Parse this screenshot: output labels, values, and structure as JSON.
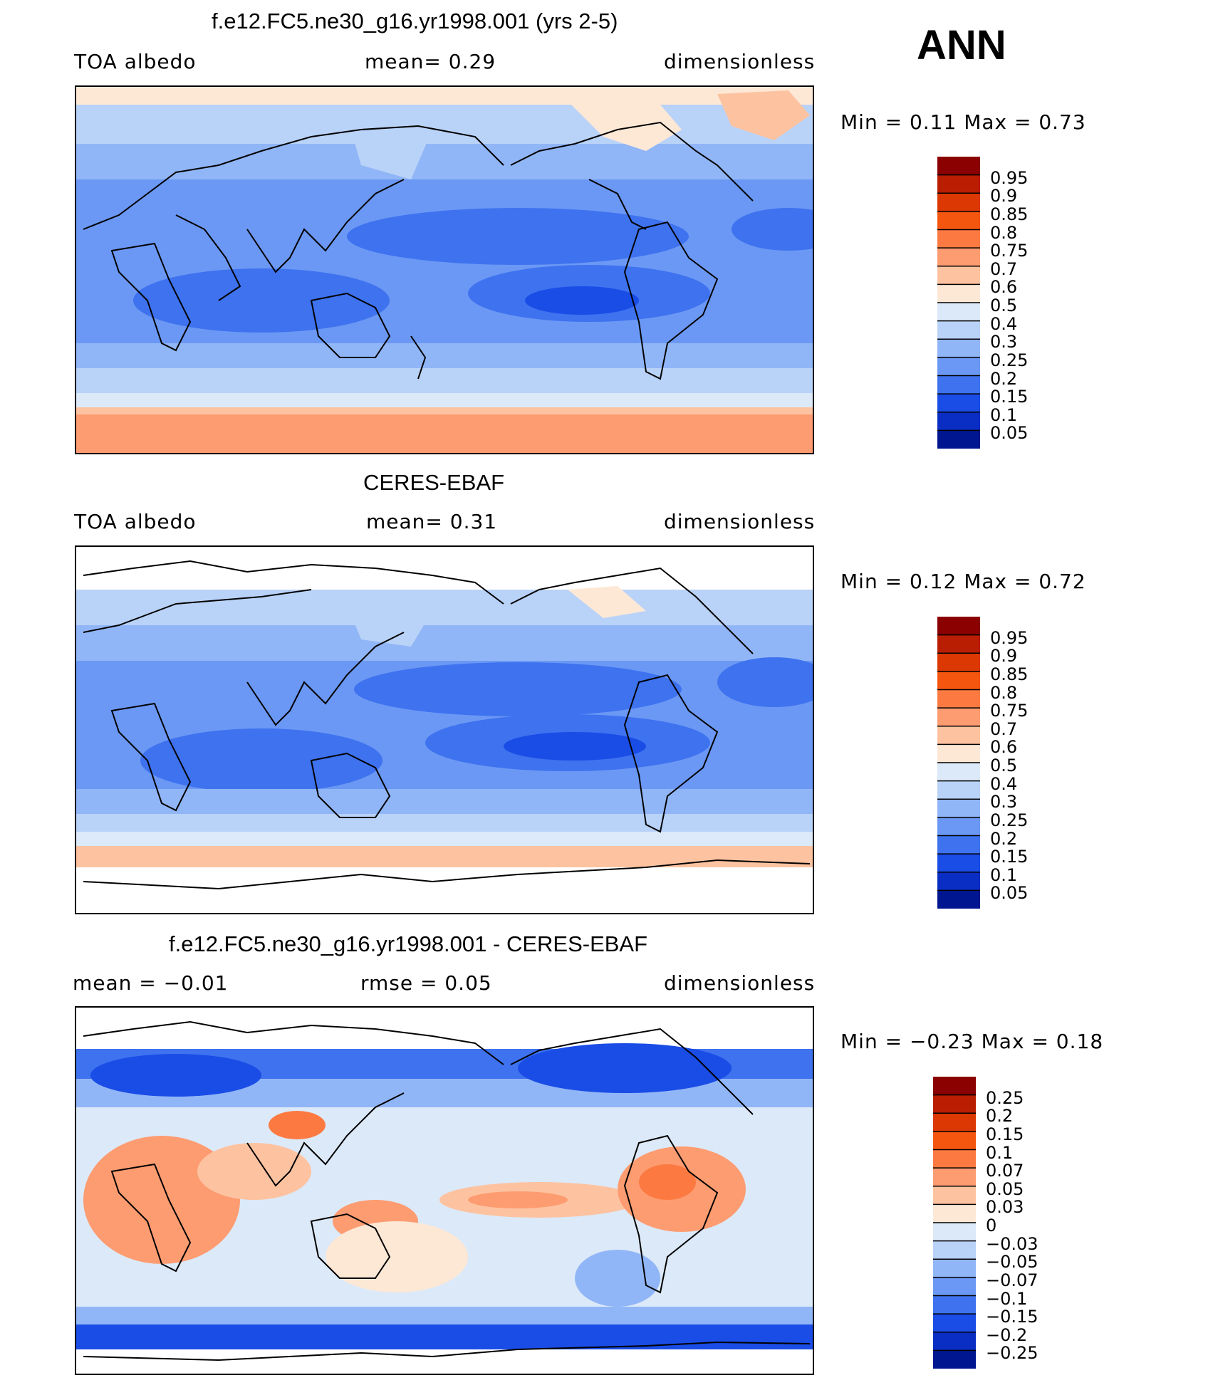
{
  "season": "ANN",
  "panels": [
    {
      "title": "f.e12.FC5.ne30_g16.yr1998.001 (yrs 2-5)",
      "left_label": "TOA  albedo",
      "mid_label": "mean=     0.29",
      "right_label": "dimensionless",
      "min_max": "Min  =      0.11  Max  =      0.73",
      "colorbar": {
        "levels": [
          "0.95",
          "0.9",
          "0.85",
          "0.8",
          "0.75",
          "0.7",
          "0.6",
          "0.5",
          "0.4",
          "0.3",
          "0.25",
          "0.2",
          "0.15",
          "0.1",
          "0.05"
        ],
        "colors": [
          "#8b0000",
          "#b91e02",
          "#dc3804",
          "#f5560f",
          "#fc7a42",
          "#fd9c71",
          "#fdc3a1",
          "#fde8d6",
          "#dce9f8",
          "#b9d2f8",
          "#91b6f7",
          "#6b98f4",
          "#3e72ef",
          "#1a4ce6",
          "#0a2ec4",
          "#001690"
        ]
      }
    },
    {
      "title": "CERES-EBAF",
      "left_label": "TOA  albedo",
      "mid_label": "mean=     0.31",
      "right_label": "dimensionless",
      "min_max": "Min  =      0.12  Max  =      0.72",
      "colorbar": {
        "levels": [
          "0.95",
          "0.9",
          "0.85",
          "0.8",
          "0.75",
          "0.7",
          "0.6",
          "0.5",
          "0.4",
          "0.3",
          "0.25",
          "0.2",
          "0.15",
          "0.1",
          "0.05"
        ],
        "colors": [
          "#8b0000",
          "#b91e02",
          "#dc3804",
          "#f5560f",
          "#fc7a42",
          "#fd9c71",
          "#fdc3a1",
          "#fde8d6",
          "#dce9f8",
          "#b9d2f8",
          "#91b6f7",
          "#6b98f4",
          "#3e72ef",
          "#1a4ce6",
          "#0a2ec4",
          "#001690"
        ]
      }
    },
    {
      "title": "f.e12.FC5.ne30_g16.yr1998.001 - CERES-EBAF",
      "left_label": "mean  =    −0.01",
      "mid_label": "rmse  =      0.05",
      "right_label": "dimensionless",
      "min_max": "Min  =     −0.23  Max  =      0.18",
      "colorbar": {
        "levels": [
          "0.25",
          "0.2",
          "0.15",
          "0.1",
          "0.07",
          "0.05",
          "0.03",
          "0",
          "−0.03",
          "−0.05",
          "−0.07",
          "−0.1",
          "−0.15",
          "−0.2",
          "−0.25"
        ],
        "colors": [
          "#8b0000",
          "#b91e02",
          "#dc3804",
          "#f5560f",
          "#fc7a42",
          "#fd9c71",
          "#fdc3a1",
          "#fde8d6",
          "#dce9f8",
          "#b9d2f8",
          "#91b6f7",
          "#6b98f4",
          "#3e72ef",
          "#1a4ce6",
          "#0a2ec4",
          "#001690"
        ]
      }
    }
  ]
}
